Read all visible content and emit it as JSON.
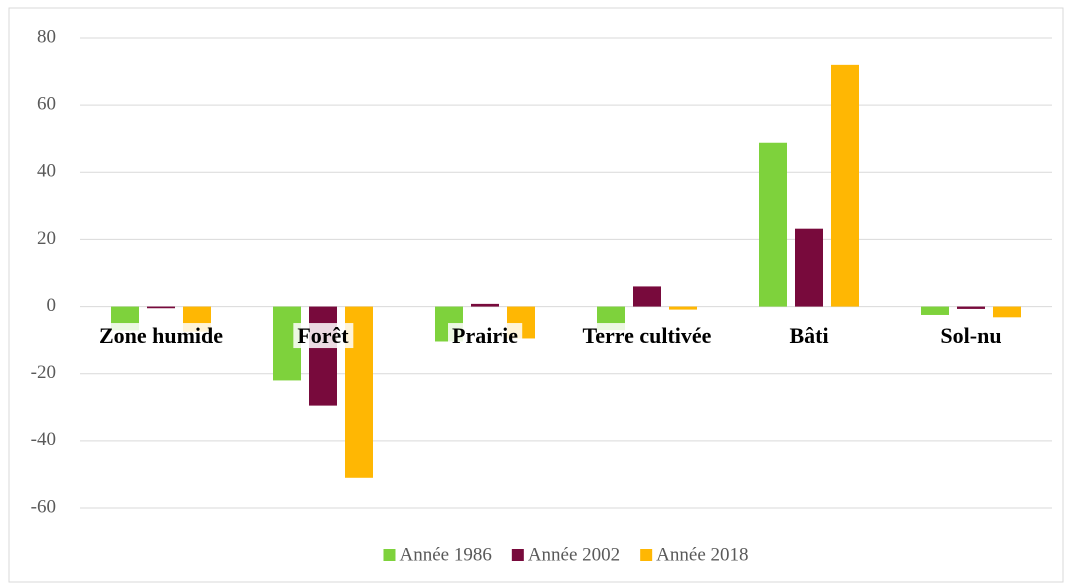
{
  "chart_data": {
    "type": "bar",
    "categories": [
      "Zone humide",
      "Forêt",
      "Prairie",
      "Terre cultivée",
      "Bâti",
      "Sol-nu"
    ],
    "series": [
      {
        "name": "Année 1986",
        "color": "#7ed23c",
        "values": [
          -7.1,
          -22,
          -10.4,
          -7,
          48.8,
          -2.5
        ]
      },
      {
        "name": "Année 2002",
        "color": "#780a3c",
        "values": [
          -0.5,
          -29.5,
          0.8,
          6,
          23.2,
          -0.7
        ]
      },
      {
        "name": "Année 2018",
        "color": "#ffb703",
        "values": [
          -7.5,
          -51,
          -9.5,
          -0.9,
          72,
          -3.2
        ]
      }
    ],
    "ylim": [
      -60,
      80
    ],
    "yticks": [
      -60,
      -40,
      -20,
      0,
      20,
      40,
      60,
      80
    ],
    "grid": true,
    "legend": "bottom"
  }
}
